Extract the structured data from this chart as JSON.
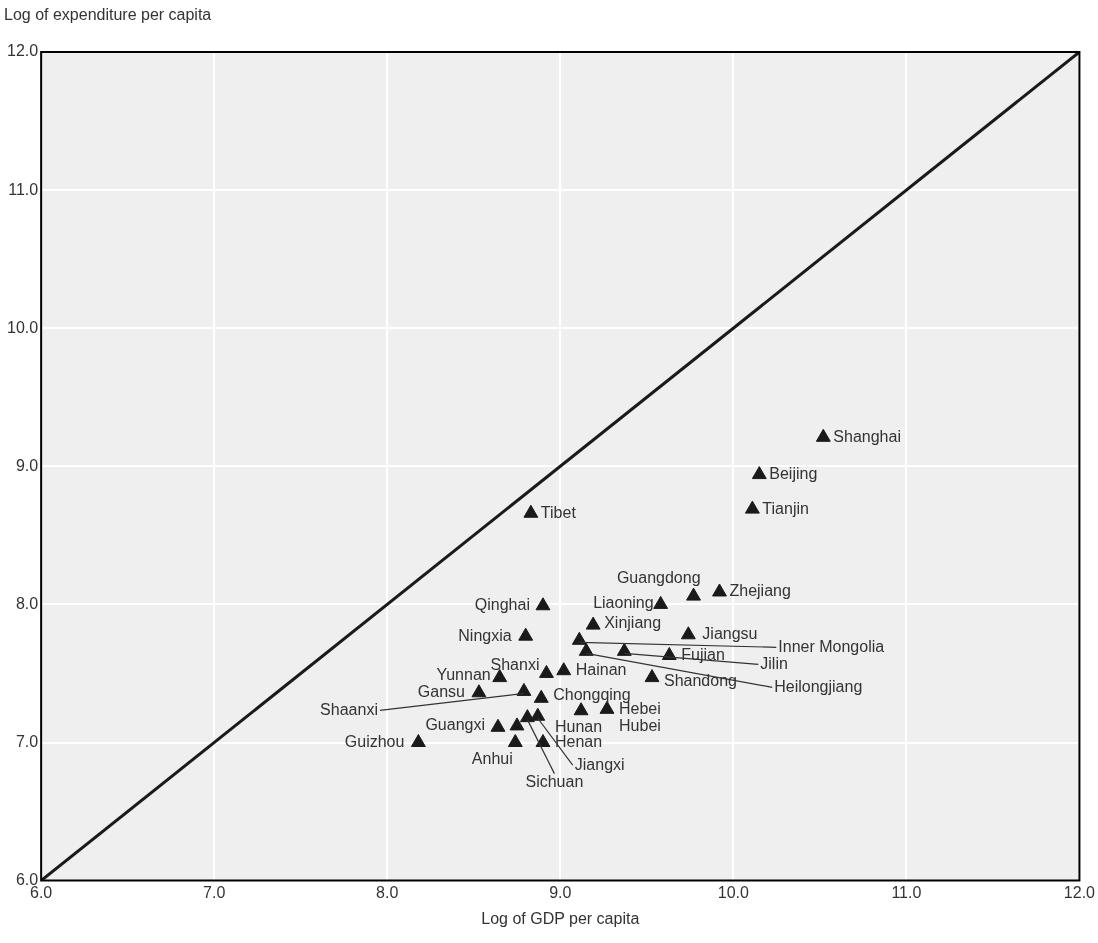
{
  "chart_data": {
    "type": "scatter",
    "xlabel": "Log of GDP per capita",
    "ylabel": "Log of expenditure per capita",
    "xlim": [
      6,
      12
    ],
    "ylim": [
      6,
      12
    ],
    "xticks": [
      {
        "value": 6,
        "label": "6.0"
      },
      {
        "value": 7,
        "label": "7.0"
      },
      {
        "value": 8,
        "label": "8.0"
      },
      {
        "value": 9,
        "label": "9.0"
      },
      {
        "value": 10,
        "label": "10.0"
      },
      {
        "value": 11,
        "label": "11.0"
      },
      {
        "value": 12,
        "label": "12.0"
      }
    ],
    "yticks": [
      {
        "value": 6,
        "label": "6.0"
      },
      {
        "value": 7,
        "label": "7.0"
      },
      {
        "value": 8,
        "label": "8.0"
      },
      {
        "value": 9,
        "label": "9.0"
      },
      {
        "value": 10,
        "label": "10.0"
      },
      {
        "value": 11,
        "label": "11.0"
      },
      {
        "value": 12,
        "label": "12.0"
      }
    ],
    "grid": true,
    "legend": false,
    "series": [
      {
        "type": "line",
        "marker": "none",
        "color": "#1a1a1a",
        "x": [
          6,
          12
        ],
        "values": [
          6,
          12
        ]
      },
      {
        "marker": "triangle",
        "color": "#1a1a1a",
        "x": [
          10.52,
          10.15,
          10.11,
          8.83,
          9.92,
          9.77,
          9.58,
          8.9,
          9.19,
          9.74,
          8.8,
          9.11,
          9.15,
          9.37,
          9.63,
          9.53,
          9.02,
          8.92,
          8.65,
          8.53,
          8.79,
          8.89,
          9.27,
          9.12,
          8.75,
          8.64,
          8.18,
          8.9,
          8.74,
          8.87,
          8.81
        ],
        "values": [
          9.21,
          8.94,
          8.69,
          8.66,
          8.09,
          8.06,
          8.0,
          7.99,
          7.85,
          7.78,
          7.77,
          7.74,
          7.66,
          7.66,
          7.63,
          7.47,
          7.52,
          7.5,
          7.47,
          7.36,
          7.37,
          7.32,
          7.24,
          7.23,
          7.12,
          7.11,
          7.0,
          7.0,
          7.0,
          7.19,
          7.18
        ]
      }
    ],
    "annotations": [
      {
        "text": "Shanghai",
        "x": 10.52,
        "y": 9.21
      },
      {
        "text": "Beijing",
        "x": 10.15,
        "y": 8.94
      },
      {
        "text": "Tianjin",
        "x": 10.11,
        "y": 8.69
      },
      {
        "text": "Tibet",
        "x": 8.83,
        "y": 8.66
      },
      {
        "text": "Zhejiang",
        "x": 9.92,
        "y": 8.09
      },
      {
        "text": "Guangdong",
        "x": 9.77,
        "y": 8.06
      },
      {
        "text": "Liaoning",
        "x": 9.58,
        "y": 8.0
      },
      {
        "text": "Qinghai",
        "x": 8.9,
        "y": 7.99
      },
      {
        "text": "Xinjiang",
        "x": 9.19,
        "y": 7.85
      },
      {
        "text": "Jiangsu",
        "x": 9.74,
        "y": 7.78
      },
      {
        "text": "Ningxia",
        "x": 8.8,
        "y": 7.77
      },
      {
        "text": "Inner Mongolia",
        "x": 9.11,
        "y": 7.74
      },
      {
        "text": "Heilongjiang",
        "x": 9.15,
        "y": 7.66
      },
      {
        "text": "Jilin",
        "x": 9.37,
        "y": 7.66
      },
      {
        "text": "Fujian",
        "x": 9.63,
        "y": 7.63
      },
      {
        "text": "Shandong",
        "x": 9.53,
        "y": 7.47
      },
      {
        "text": "Hainan",
        "x": 9.02,
        "y": 7.52
      },
      {
        "text": "Shanxi",
        "x": 8.92,
        "y": 7.5
      },
      {
        "text": "Yunnan",
        "x": 8.65,
        "y": 7.47
      },
      {
        "text": "Gansu",
        "x": 8.53,
        "y": 7.36
      },
      {
        "text": "Shaanxi",
        "x": 8.79,
        "y": 7.37
      },
      {
        "text": "Chongqing",
        "x": 8.89,
        "y": 7.32
      },
      {
        "text": "Hebei",
        "x": 9.27,
        "y": 7.24
      },
      {
        "text": "Hubei",
        "x": 9.12,
        "y": 7.23
      },
      {
        "text": "Hunan",
        "x": 8.75,
        "y": 7.12
      },
      {
        "text": "Guangxi",
        "x": 8.64,
        "y": 7.11
      },
      {
        "text": "Guizhou",
        "x": 8.18,
        "y": 7.0
      },
      {
        "text": "Henan",
        "x": 8.9,
        "y": 7.0
      },
      {
        "text": "Anhui",
        "x": 8.74,
        "y": 7.0
      },
      {
        "text": "Jiangxi",
        "x": 8.87,
        "y": 7.19
      },
      {
        "text": "Sichuan",
        "x": 8.81,
        "y": 7.18
      }
    ]
  }
}
